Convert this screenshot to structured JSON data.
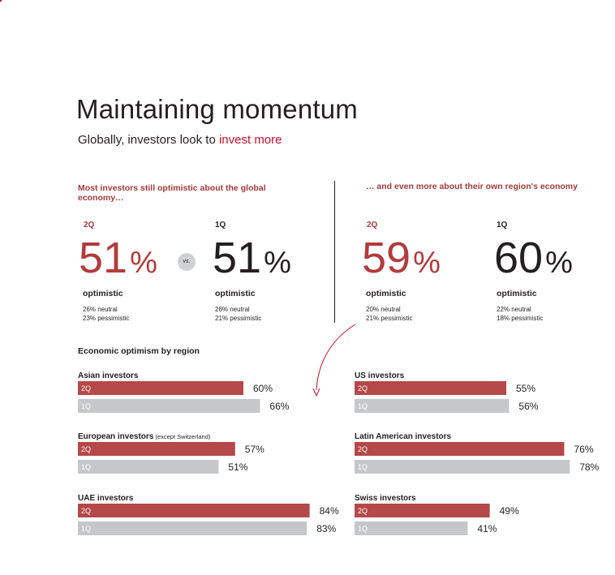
{
  "title": "Maintaining momentum",
  "subtitle": {
    "text": "Globally, investors look to ",
    "highlight": "invest more"
  },
  "left_panel": {
    "heading": "Most investors still optimistic about the global economy…",
    "current": {
      "quarter": "2Q",
      "value": "51",
      "unit": "%",
      "label": "optimistic",
      "neutral": "26% neutral",
      "pessimistic": "23% pessimistic"
    },
    "vs": "vs.",
    "previous": {
      "quarter": "1Q",
      "value": "51",
      "unit": "%",
      "label": "optimistic",
      "neutral": "28% neutral",
      "pessimistic": "21% pessimistic"
    }
  },
  "right_panel": {
    "heading": "… and even more about their own region's economy",
    "current": {
      "quarter": "2Q",
      "value": "59",
      "unit": "%",
      "label": "optimistic",
      "neutral": "20% neutral",
      "pessimistic": "21% pessimistic"
    },
    "previous": {
      "quarter": "1Q",
      "value": "60",
      "unit": "%",
      "label": "optimistic",
      "neutral": "22% neutral",
      "pessimistic": "18% pessimistic"
    }
  },
  "colors": {
    "current": "#b54848",
    "previous": "#c6c7c9",
    "accent": "#c8102e",
    "text": "#231f20"
  },
  "chart_data": {
    "type": "bar",
    "title": "Economic optimism by region",
    "unit": "%",
    "series_names": [
      "2Q",
      "1Q"
    ],
    "groups": [
      {
        "name": "Asian investors",
        "note": "",
        "values": [
          60,
          66
        ]
      },
      {
        "name": "US investors",
        "note": "",
        "values": [
          55,
          56
        ]
      },
      {
        "name": "European investors",
        "note": "(except Switzerland)",
        "values": [
          57,
          51
        ]
      },
      {
        "name": "Latin American investors",
        "note": "",
        "values": [
          76,
          78
        ]
      },
      {
        "name": "UAE investors",
        "note": "",
        "values": [
          84,
          83
        ]
      },
      {
        "name": "Swiss investors",
        "note": "",
        "values": [
          49,
          41
        ]
      }
    ]
  }
}
